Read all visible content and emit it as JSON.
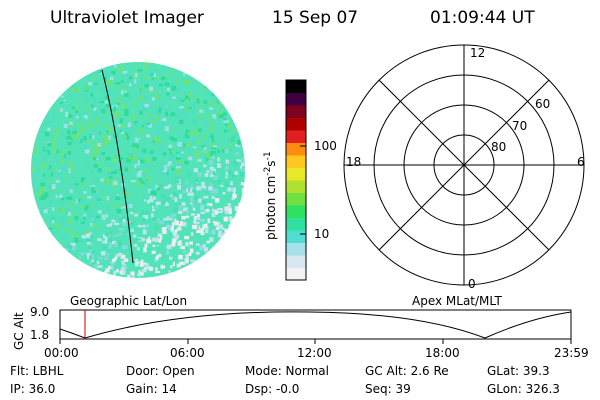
{
  "header": {
    "instrument": "Ultraviolet Imager",
    "date": "15 Sep 07",
    "time": "01:09:44 UT"
  },
  "colorbar": {
    "unit_label": "photon cm",
    "unit_exp1": "-2",
    "unit_s": "s",
    "unit_exp2": "-1",
    "ticks": [
      "100",
      "10"
    ],
    "colors": [
      "#f2f2f2",
      "#d8e8f0",
      "#a8e0ea",
      "#50dcd0",
      "#30e0a0",
      "#30e060",
      "#70e040",
      "#b0e030",
      "#e8e828",
      "#ffc820",
      "#ff8c10",
      "#e02020",
      "#b00000",
      "#800020",
      "#400040",
      "#000000"
    ]
  },
  "polar": {
    "mlt_labels": [
      "12",
      "18",
      "6",
      "0"
    ],
    "mlat_labels": [
      "60",
      "70",
      "80"
    ]
  },
  "labels": {
    "geo": "Geographic Lat/Lon",
    "apex": "Apex MLat/MLT"
  },
  "altitude": {
    "axis_label": "GC Alt",
    "ticks": [
      "9.0",
      "1.8"
    ],
    "time_ticks": [
      "00:00",
      "06:00",
      "12:00",
      "18:00",
      "23:59"
    ]
  },
  "info": {
    "filter": "Flt: LBHL",
    "door": "Door: Open",
    "mode": "Mode: Normal",
    "gc_alt": "GC Alt: 2.6 Re",
    "glat": "GLat:  39.3",
    "ip": "IP: 36.0",
    "gain": "Gain: 14",
    "dsp": "Dsp:    -0.0",
    "seq": "Seq: 39",
    "glon": "GLon: 326.3"
  }
}
